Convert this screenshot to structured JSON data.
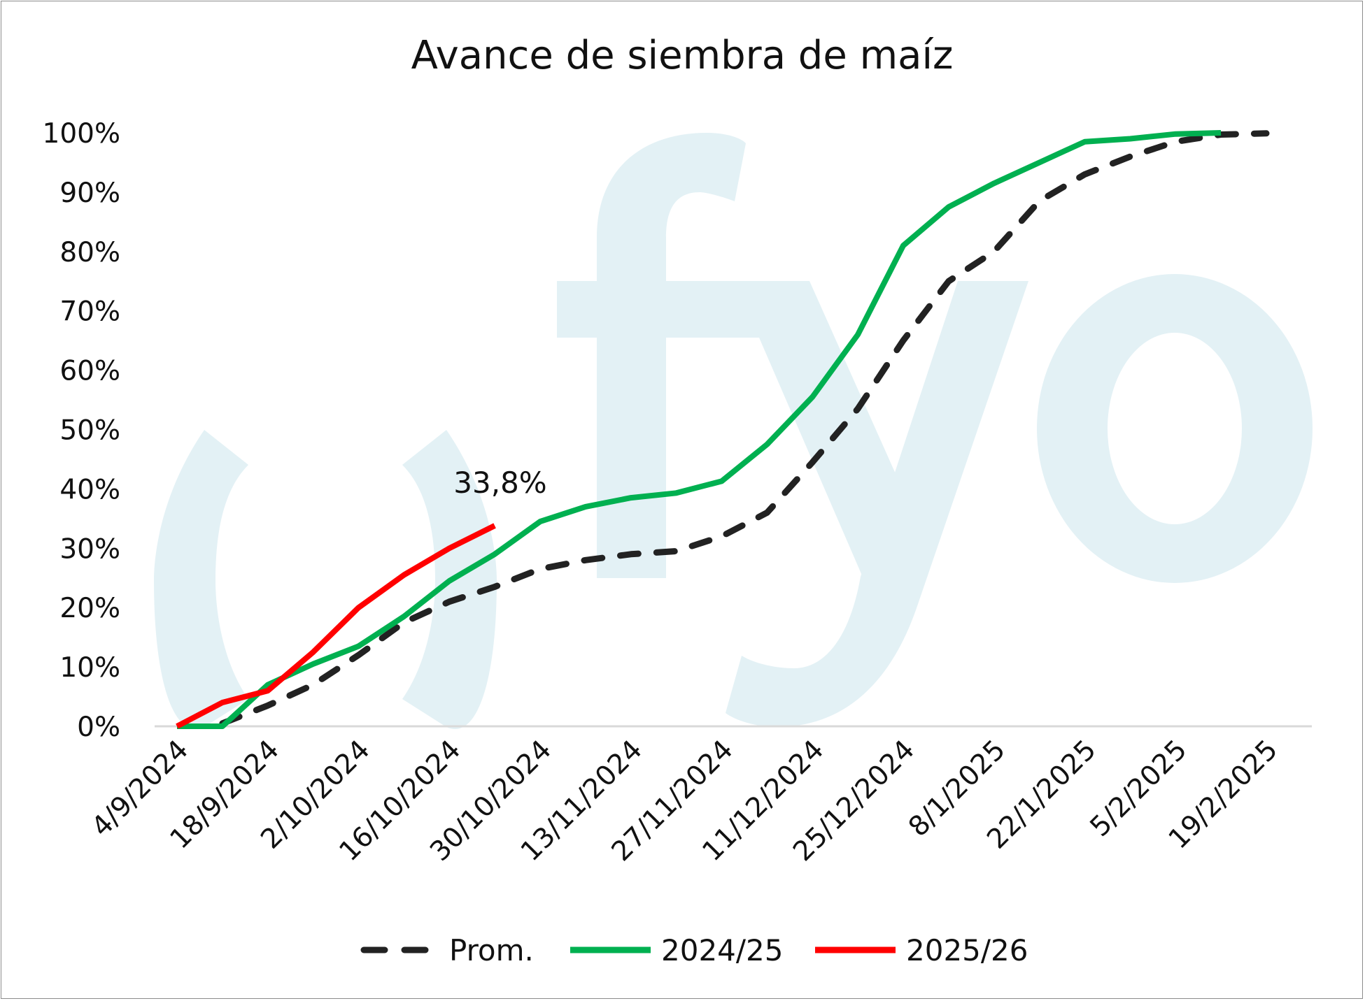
{
  "chart_data": {
    "type": "line",
    "title": "Avance de siembra de maíz",
    "xlabel": "",
    "ylabel": "",
    "ylim": [
      0,
      100
    ],
    "y_ticks": [
      "0%",
      "10%",
      "20%",
      "30%",
      "40%",
      "50%",
      "60%",
      "70%",
      "80%",
      "90%",
      "100%"
    ],
    "x_tick_labels": [
      "4/9/2024",
      "18/9/2024",
      "2/10/2024",
      "16/10/2024",
      "30/10/2024",
      "13/11/2024",
      "27/11/2024",
      "11/12/2024",
      "25/12/2024",
      "8/1/2025",
      "22/1/2025",
      "5/2/2025",
      "19/2/2025"
    ],
    "x_unit": "weeks since 4/9/2024",
    "grid": false,
    "legend_position": "bottom",
    "annotation": "33,8%",
    "watermark": "fyo",
    "series": [
      {
        "name": "Prom.",
        "color": "#222222",
        "style": "dashed",
        "values": [
          null,
          0.5,
          3.5,
          7,
          12,
          17.5,
          21,
          23.5,
          26.5,
          28,
          29,
          29.5,
          32,
          36,
          44.5,
          53.5,
          65,
          75,
          80,
          88.5,
          93,
          96,
          98.5,
          99.7,
          99.9
        ]
      },
      {
        "name": "2024/25",
        "color": "#00b050",
        "style": "solid",
        "values": [
          0,
          0,
          7,
          10.5,
          13.5,
          18.5,
          24.5,
          29,
          34.5,
          37,
          38.5,
          39.3,
          41.3,
          47.5,
          55.5,
          66,
          81,
          87.5,
          91.5,
          95,
          98.5,
          99,
          99.8,
          100
        ]
      },
      {
        "name": "2025/26",
        "color": "#ff0000",
        "style": "solid",
        "values": [
          0,
          4,
          6,
          12.5,
          20,
          25.5,
          30,
          33.8
        ]
      }
    ]
  }
}
